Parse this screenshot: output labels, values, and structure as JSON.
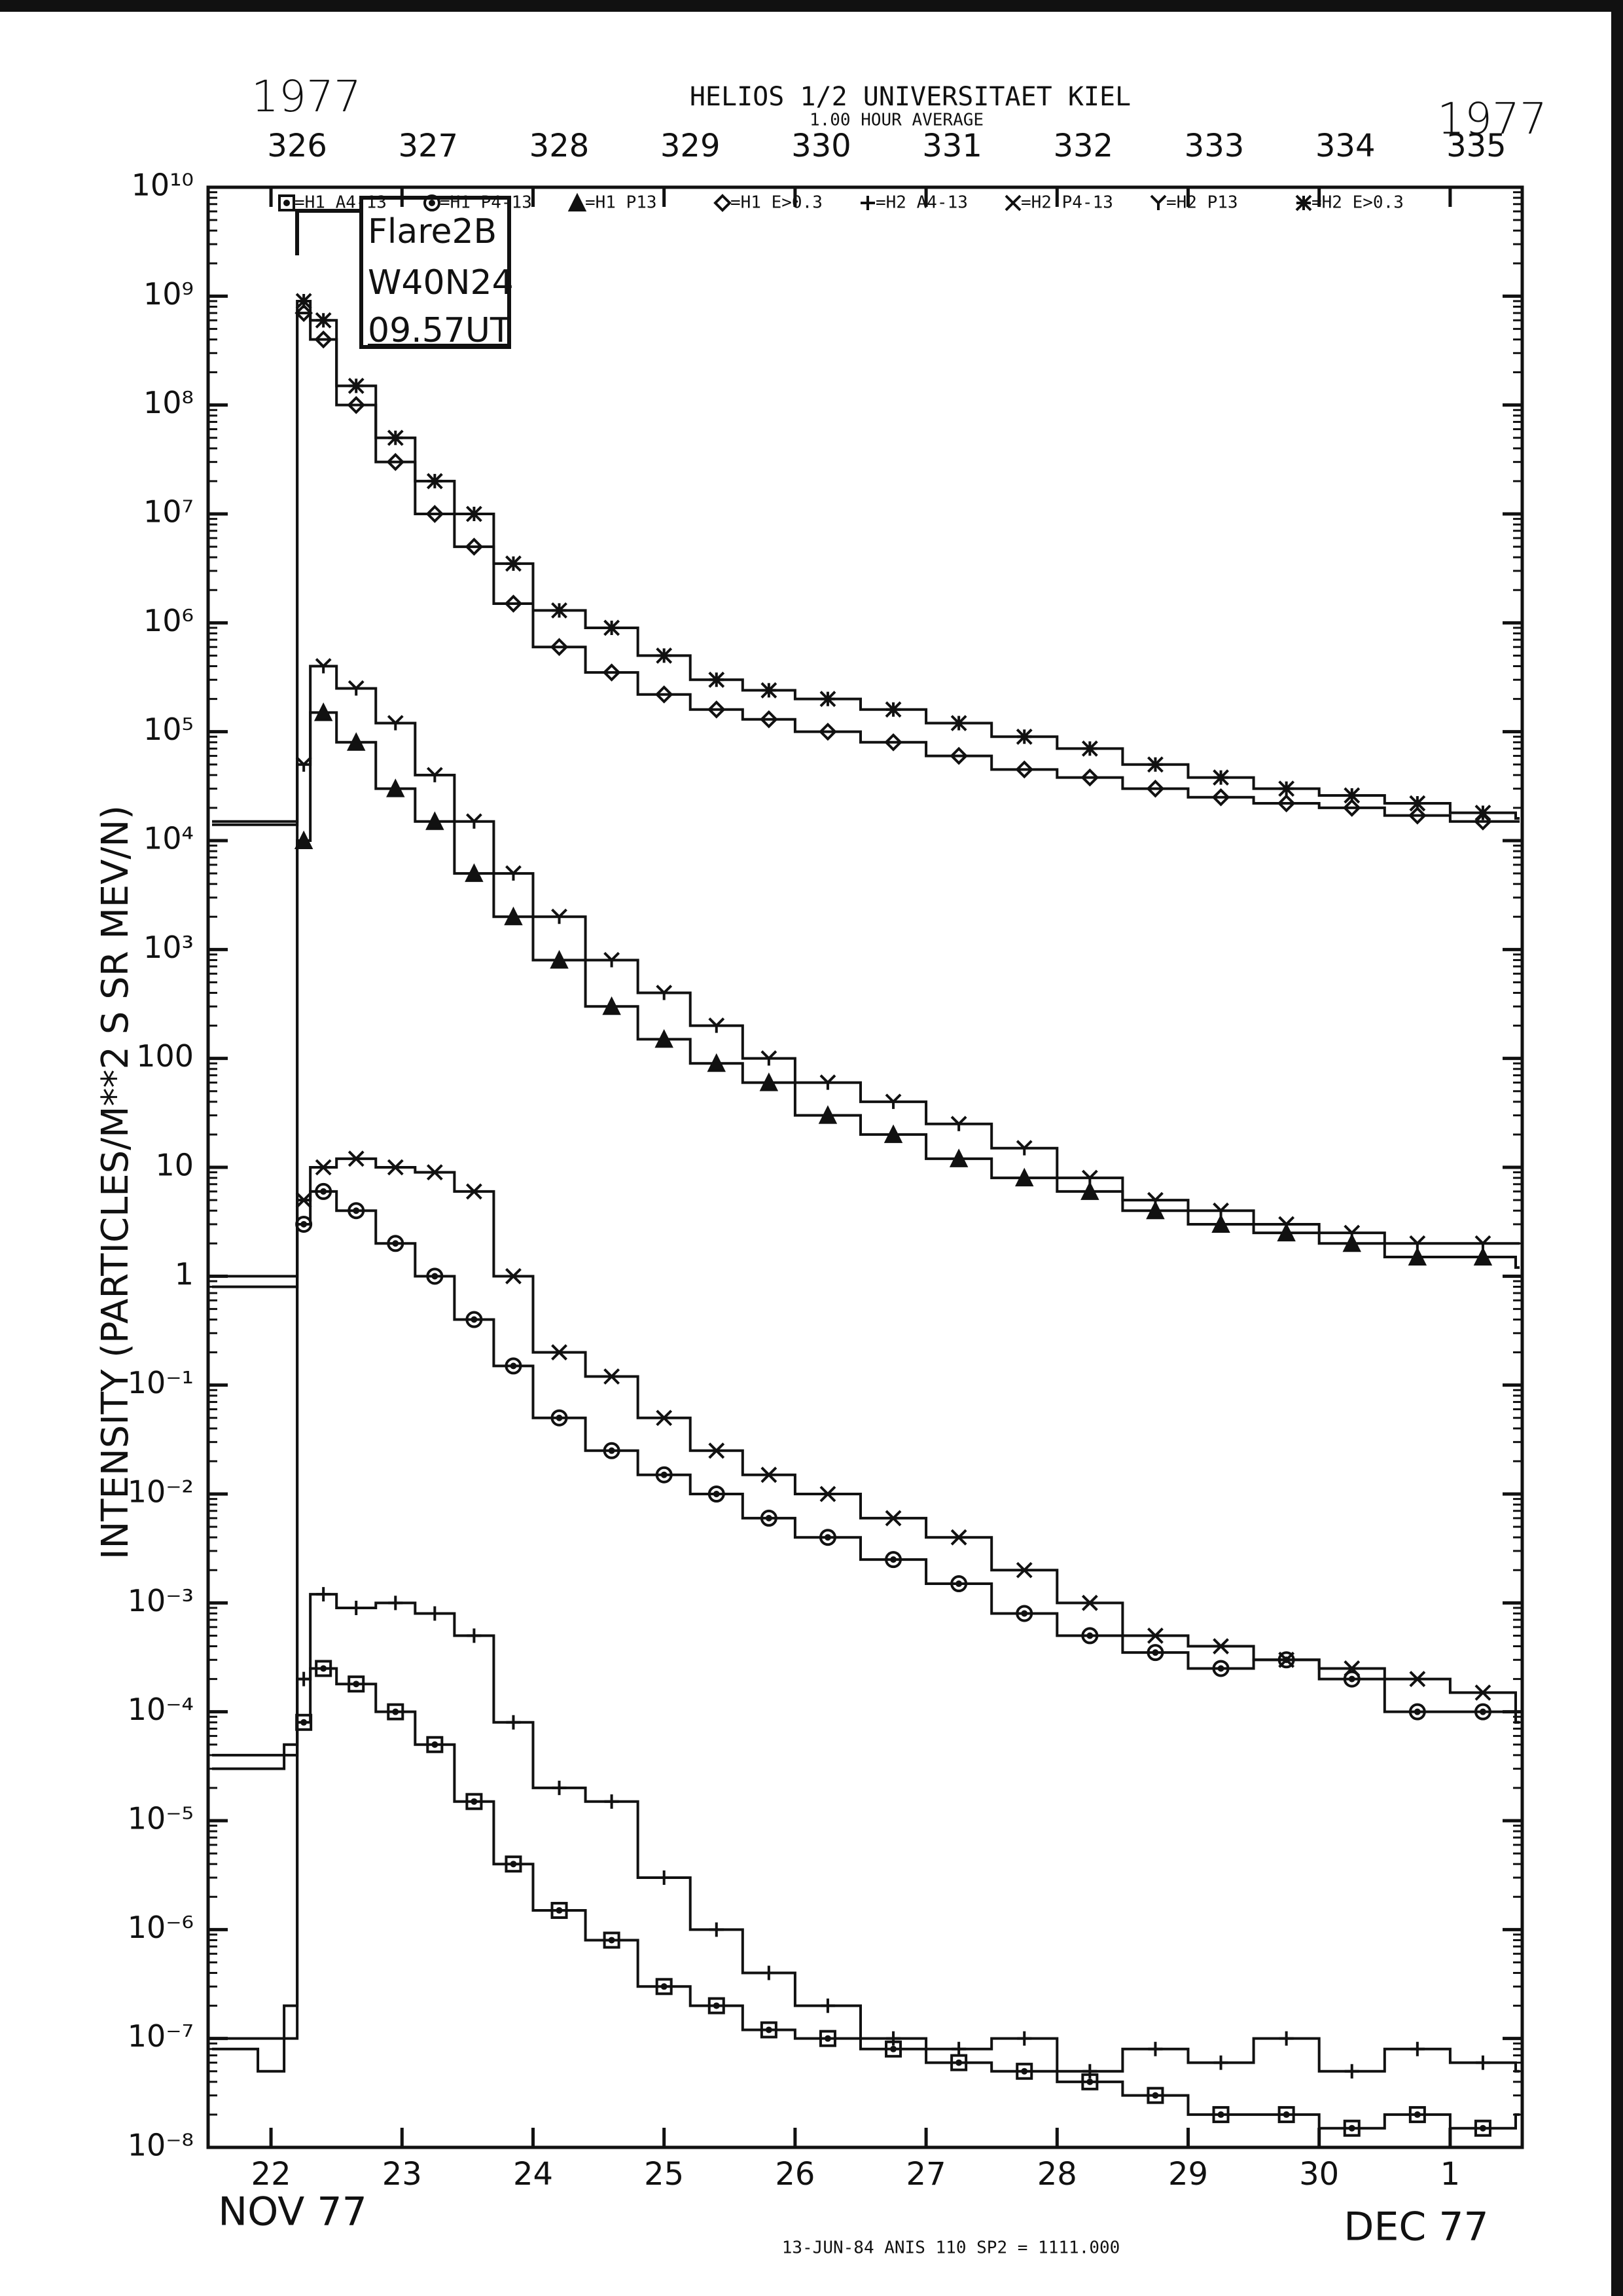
{
  "chart_data": {
    "type": "line",
    "title": "HELIOS 1/2 UNIVERSITAET KIEL",
    "subtitle": "1.00 HOUR AVERAGE",
    "year_labels": [
      "1977",
      "1977"
    ],
    "y_label": "INTENSITY (PARTICLES/M**2 S SR MEV/N)",
    "x_labels": [
      "NOV 77",
      "DEC 77"
    ],
    "footnote": "13-JUN-84 ANIS 110 SP2 = 1111.000",
    "annotations": [
      "Flare2B",
      "W40N24",
      "09.57UT"
    ],
    "log_scale": true,
    "ylim": [
      1e-08,
      10000000000.0
    ],
    "yticks": [
      {
        "value": 1e-08,
        "label": "10⁻⁸"
      },
      {
        "value": 1e-07,
        "label": "10⁻⁷"
      },
      {
        "value": 1e-06,
        "label": "10⁻⁶"
      },
      {
        "value": 1e-05,
        "label": "10⁻⁵"
      },
      {
        "value": 0.0001,
        "label": "10⁻⁴"
      },
      {
        "value": 0.001,
        "label": "10⁻³"
      },
      {
        "value": 0.01,
        "label": "10⁻²"
      },
      {
        "value": 0.1,
        "label": "10⁻¹"
      },
      1,
      10,
      100,
      {
        "value": 1000,
        "label": "10³"
      },
      {
        "value": 10000.0,
        "label": "10⁴"
      },
      {
        "value": 100000.0,
        "label": "10⁵"
      },
      {
        "value": 1000000.0,
        "label": "10⁶"
      },
      {
        "value": 10000000.0,
        "label": "10⁷"
      },
      {
        "value": 100000000.0,
        "label": "10⁸"
      },
      {
        "value": 1000000000.0,
        "label": "10⁹"
      },
      {
        "value": 10000000000.0,
        "label": "10¹⁰"
      }
    ],
    "xlim": [
      325.52,
      335.55
    ],
    "xticks": [
      {
        "value": 326,
        "label": "22"
      },
      {
        "value": 327,
        "label": "23"
      },
      {
        "value": 328,
        "label": "24"
      },
      {
        "value": 329,
        "label": "25"
      },
      {
        "value": 330,
        "label": "26"
      },
      {
        "value": 331,
        "label": "27"
      },
      {
        "value": 332,
        "label": "28"
      },
      {
        "value": 333,
        "label": "29"
      },
      {
        "value": 334,
        "label": "30"
      },
      {
        "value": 335,
        "label": "1"
      }
    ],
    "x2ticks": [
      326,
      327,
      328,
      329,
      330,
      331,
      332,
      333,
      334,
      335
    ],
    "x": [
      325.55,
      325.9,
      326.1,
      326.2,
      326.3,
      326.5,
      326.8,
      327.1,
      327.4,
      327.7,
      328.0,
      328.4,
      328.8,
      329.2,
      329.6,
      330.0,
      330.5,
      331.0,
      331.5,
      332.0,
      332.5,
      333.0,
      333.5,
      334.0,
      334.5,
      335.0,
      335.5
    ],
    "series": [
      {
        "name": "=H1 A4-13",
        "marker": "square",
        "color": "#111",
        "values": [
          8e-08,
          5e-08,
          1e-07,
          8e-05,
          0.00025,
          0.00018,
          0.0001,
          5e-05,
          1.5e-05,
          4e-06,
          1.5e-06,
          8e-07,
          3e-07,
          2e-07,
          1.2e-07,
          1e-07,
          8e-08,
          6e-08,
          5e-08,
          4e-08,
          3e-08,
          2e-08,
          2e-08,
          1.5e-08,
          2e-08,
          1.5e-08,
          2e-08
        ]
      },
      {
        "name": "=H1 P4-13",
        "marker": "circle",
        "color": "#111",
        "values": [
          3e-05,
          3e-05,
          4e-05,
          3,
          6,
          4,
          2,
          1,
          0.4,
          0.15,
          0.05,
          0.025,
          0.015,
          0.01,
          0.006,
          0.004,
          0.0025,
          0.0015,
          0.0008,
          0.0005,
          0.00035,
          0.00025,
          0.0003,
          0.0002,
          0.0001,
          0.0001,
          8e-05
        ]
      },
      {
        "name": "=H1 P13",
        "marker": "triangle",
        "color": "#111",
        "values": [
          0.8,
          0.8,
          0.8,
          10000.0,
          150000.0,
          80000.0,
          30000.0,
          15000.0,
          5000.0,
          2000.0,
          800,
          300,
          150,
          90,
          60,
          30,
          20,
          12,
          8,
          6,
          4,
          3,
          2.5,
          2,
          1.5,
          1.5,
          1.2
        ]
      },
      {
        "name": "=H1 E>0.3",
        "marker": "diamond",
        "color": "#111",
        "values": [
          14000.0,
          14000.0,
          14000.0,
          700000000.0,
          400000000.0,
          100000000.0,
          30000000.0,
          10000000.0,
          5000000.0,
          1500000.0,
          600000.0,
          350000.0,
          220000.0,
          160000.0,
          130000.0,
          100000.0,
          80000.0,
          60000.0,
          45000.0,
          38000.0,
          30000.0,
          25000.0,
          22000.0,
          20000.0,
          17000.0,
          15000.0,
          15000.0
        ]
      },
      {
        "name": "=H2 A4-13",
        "marker": "plus",
        "color": "#111",
        "values": [
          1e-07,
          1e-07,
          2e-07,
          0.0002,
          0.0012,
          0.0009,
          0.001,
          0.0008,
          0.0005,
          8e-05,
          2e-05,
          1.5e-05,
          3e-06,
          1e-06,
          4e-07,
          2e-07,
          1e-07,
          8e-08,
          1e-07,
          5e-08,
          8e-08,
          6e-08,
          1e-07,
          5e-08,
          8e-08,
          6e-08,
          5e-08
        ]
      },
      {
        "name": "=H2 P4-13",
        "marker": "x",
        "color": "#111",
        "values": [
          4e-05,
          4e-05,
          5e-05,
          5,
          10,
          12,
          10,
          9,
          6,
          1,
          0.2,
          0.12,
          0.05,
          0.025,
          0.015,
          0.01,
          0.006,
          0.004,
          0.002,
          0.001,
          0.0005,
          0.0004,
          0.0003,
          0.00025,
          0.0002,
          0.00015,
          8e-05
        ]
      },
      {
        "name": "=H2 P13",
        "marker": "y",
        "color": "#111",
        "values": [
          1,
          1,
          1,
          50000.0,
          400000.0,
          250000.0,
          120000.0,
          40000.0,
          15000.0,
          5000.0,
          2000.0,
          800,
          400,
          200,
          100,
          60,
          40,
          25,
          15,
          8,
          5,
          4,
          3,
          2.5,
          2,
          2,
          2
        ]
      },
      {
        "name": "=H2 E>0.3",
        "marker": "star",
        "color": "#111",
        "values": [
          15000.0,
          15000.0,
          15000.0,
          900000000.0,
          600000000.0,
          150000000.0,
          50000000.0,
          20000000.0,
          10000000.0,
          3500000.0,
          1300000.0,
          900000.0,
          500000.0,
          300000.0,
          240000.0,
          200000.0,
          160000.0,
          120000.0,
          90000.0,
          70000.0,
          50000.0,
          38000.0,
          30000.0,
          26000.0,
          22000.0,
          18000.0,
          16000.0
        ]
      }
    ]
  }
}
